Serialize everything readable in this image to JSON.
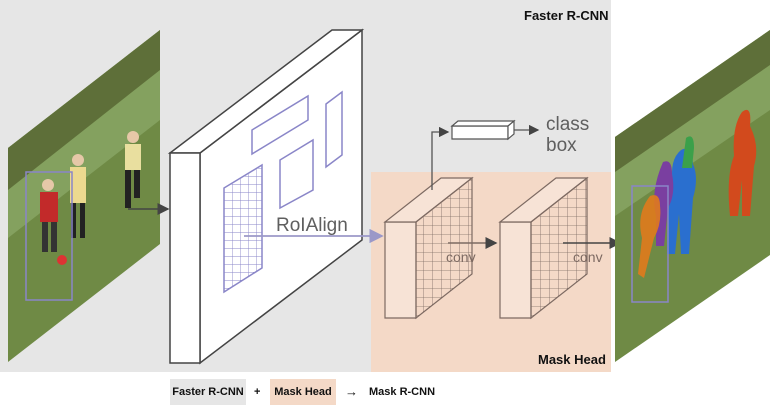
{
  "diagram": {
    "regions": {
      "faster_rcnn_label": "Faster R-CNN",
      "mask_head_label": "Mask Head"
    },
    "labels": {
      "roi_align": "RoIAlign",
      "conv_1": "conv",
      "conv_2": "conv",
      "class": "class",
      "box": "box"
    },
    "legend": {
      "faster_rcnn": "Faster R-CNN",
      "plus": "+",
      "mask_head": "Mask Head",
      "arrow": "→",
      "result": "Mask R-CNN"
    },
    "colors": {
      "faster_rcnn_bg": "#e6e6e6",
      "mask_head_bg": "#f4d9c7",
      "line_gray": "#555555",
      "roi_purple": "#8a86c8",
      "mask_purple": "#7a3fa0",
      "mask_orange": "#e07a1c",
      "mask_blue": "#2a6fcf",
      "mask_green": "#3ba04a",
      "mask_red": "#d24a1d"
    }
  }
}
